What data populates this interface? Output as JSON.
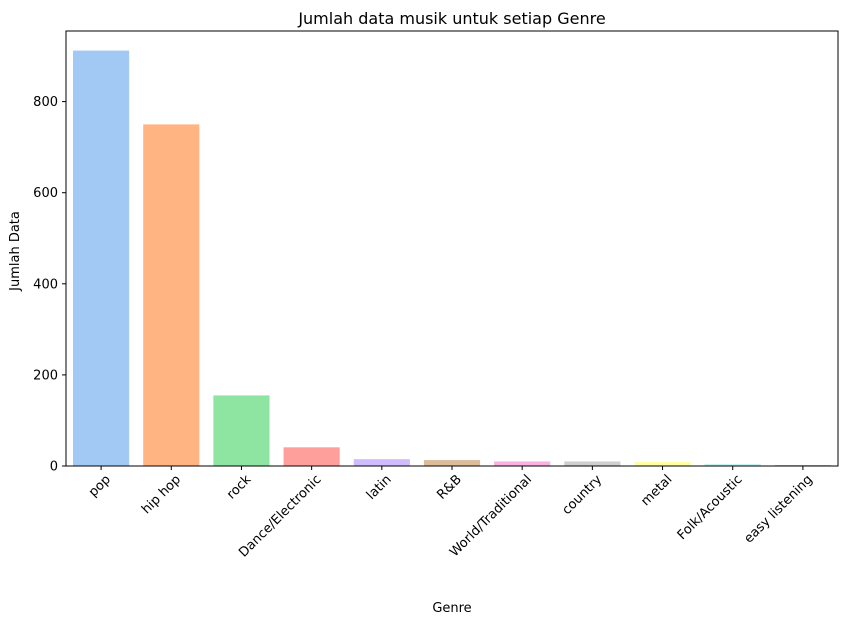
{
  "chart_data": {
    "type": "bar",
    "title": "Jumlah data musik untuk setiap Genre",
    "xlabel": "Genre",
    "ylabel": "Jumlah Data",
    "ylim": [
      0,
      955
    ],
    "yticks": [
      0,
      200,
      400,
      600,
      800
    ],
    "categories": [
      "pop",
      "hip hop",
      "rock",
      "Dance/Electronic",
      "latin",
      "R&B",
      "World/Traditional",
      "country",
      "metal",
      "Folk/Acoustic",
      "easy listening"
    ],
    "values": [
      912,
      750,
      155,
      41,
      15,
      13,
      10,
      10,
      9,
      4,
      2
    ],
    "colors": [
      "#a1c9f4",
      "#ffb482",
      "#8de5a1",
      "#ff9f9b",
      "#d0bbff",
      "#debb9b",
      "#fab0e4",
      "#cfcfcf",
      "#fffea3",
      "#b9f2f0",
      "#a1c9f4"
    ],
    "grid": false,
    "legend": "none"
  }
}
